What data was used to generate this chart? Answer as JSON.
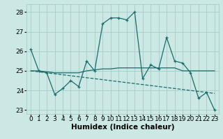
{
  "xlabel": "Humidex (Indice chaleur)",
  "x_values": [
    0,
    1,
    2,
    3,
    4,
    5,
    6,
    7,
    8,
    9,
    10,
    11,
    12,
    13,
    14,
    15,
    16,
    17,
    18,
    19,
    20,
    21,
    22,
    23
  ],
  "line1_y": [
    26.1,
    25.0,
    24.9,
    23.8,
    24.1,
    24.5,
    24.2,
    25.5,
    25.0,
    27.4,
    27.7,
    27.7,
    27.6,
    28.0,
    24.6,
    25.3,
    25.1,
    26.7,
    25.5,
    25.4,
    24.9,
    23.6,
    23.9,
    23.0
  ],
  "line2_y": [
    25.0,
    25.0,
    24.95,
    24.9,
    24.9,
    24.9,
    24.9,
    25.0,
    25.05,
    25.1,
    25.1,
    25.15,
    25.15,
    25.15,
    25.15,
    25.15,
    25.15,
    25.15,
    25.15,
    25.0,
    25.0,
    25.0,
    25.0,
    25.0
  ],
  "line3_y": [
    25.0,
    24.95,
    24.9,
    24.85,
    24.8,
    24.75,
    24.7,
    24.65,
    24.6,
    24.55,
    24.5,
    24.45,
    24.4,
    24.35,
    24.3,
    24.25,
    24.2,
    24.15,
    24.1,
    24.05,
    24.0,
    23.95,
    23.9,
    23.85
  ],
  "bg_color": "#cce8e4",
  "line_color": "#1a6b6b",
  "grid_color": "#aacfcb",
  "ylim": [
    22.8,
    28.4
  ],
  "yticks": [
    23,
    24,
    25,
    26,
    27,
    28
  ],
  "tick_fontsize": 6.5,
  "label_fontsize": 7.5
}
